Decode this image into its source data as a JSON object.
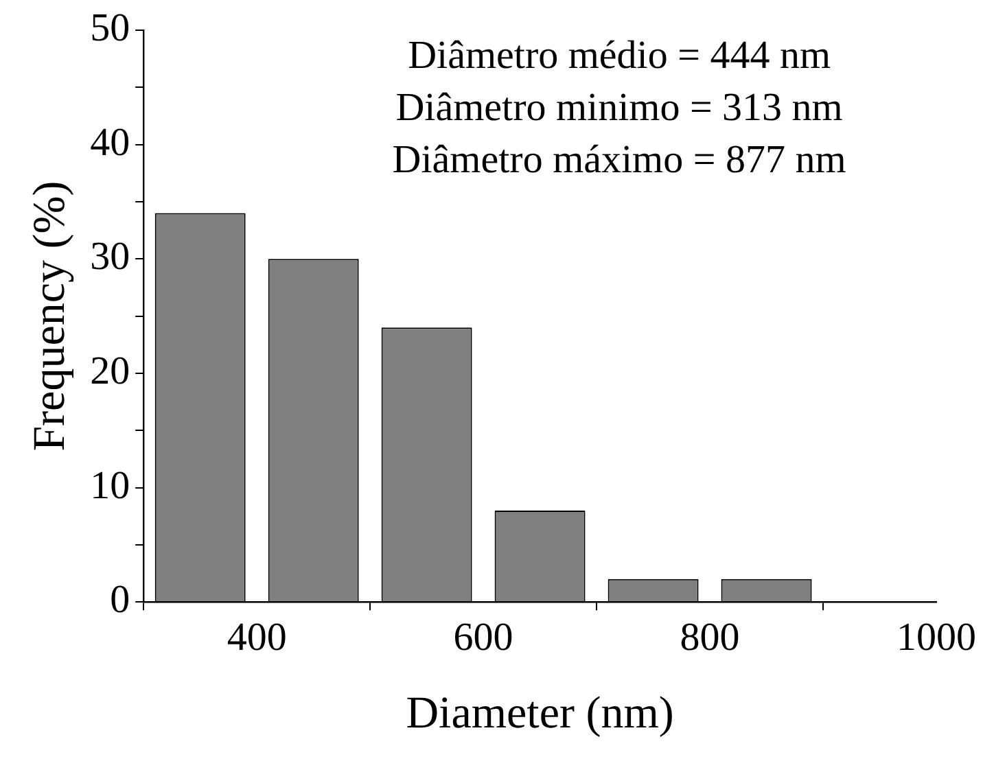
{
  "chart_data": {
    "type": "histogram",
    "xlabel": "Diameter (nm)",
    "ylabel": "Frequency (%)",
    "bins": [
      300,
      400,
      500,
      600,
      700,
      800,
      900
    ],
    "values": [
      34,
      30,
      24,
      8,
      2,
      2
    ],
    "color": "#808080",
    "xlim": [
      300,
      1000
    ],
    "xticks": [
      400,
      600,
      800,
      1000
    ],
    "ylim": [
      0,
      50
    ],
    "yticks": [
      0,
      {
        "value": 5,
        "label": null
      },
      10,
      {
        "value": 15,
        "label": null
      },
      20,
      {
        "value": 25,
        "label": null
      },
      30,
      {
        "value": 35,
        "label": null
      },
      40,
      {
        "value": 45,
        "label": null
      },
      50
    ],
    "grid": false,
    "legend": false,
    "annotations": [
      "Diâmetro médio = 444 nm",
      "Diâmetro minimo = 313 nm",
      "Diâmetro máximo = 877 nm"
    ]
  }
}
